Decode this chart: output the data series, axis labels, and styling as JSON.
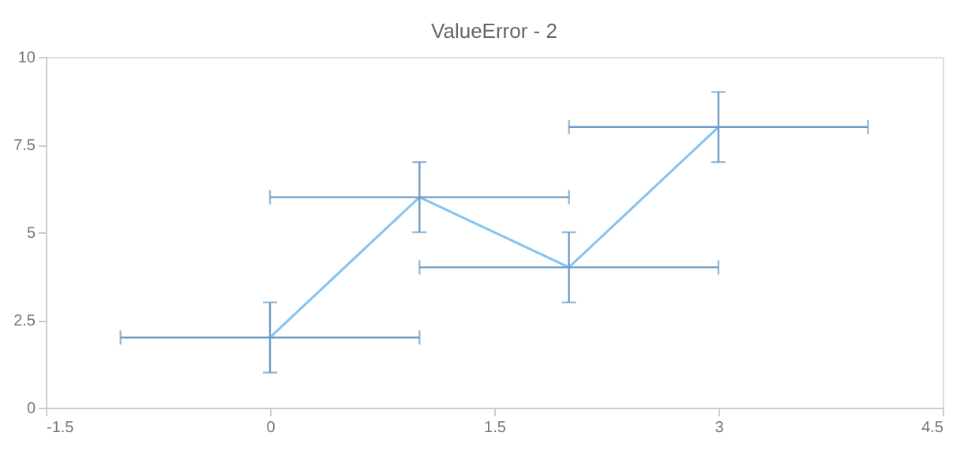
{
  "chart_data": {
    "type": "line",
    "title": "ValueError - 2",
    "x": [
      0,
      1,
      2,
      3
    ],
    "series": [
      {
        "color": "#82c4f2",
        "values": [
          2,
          6,
          4,
          8
        ],
        "errors": [
          1,
          1,
          1,
          1
        ],
        "xerrors": [
          1,
          1,
          1,
          1
        ]
      }
    ],
    "xlim": [
      -1.5,
      4.5
    ],
    "xticks": [
      -1.5,
      0,
      1.5,
      3,
      4.5
    ],
    "ylim": [
      0,
      10
    ],
    "yticks": [
      0,
      2.5,
      5,
      7.5,
      10
    ],
    "grid": false,
    "marker": "none",
    "line_style": "solid"
  }
}
